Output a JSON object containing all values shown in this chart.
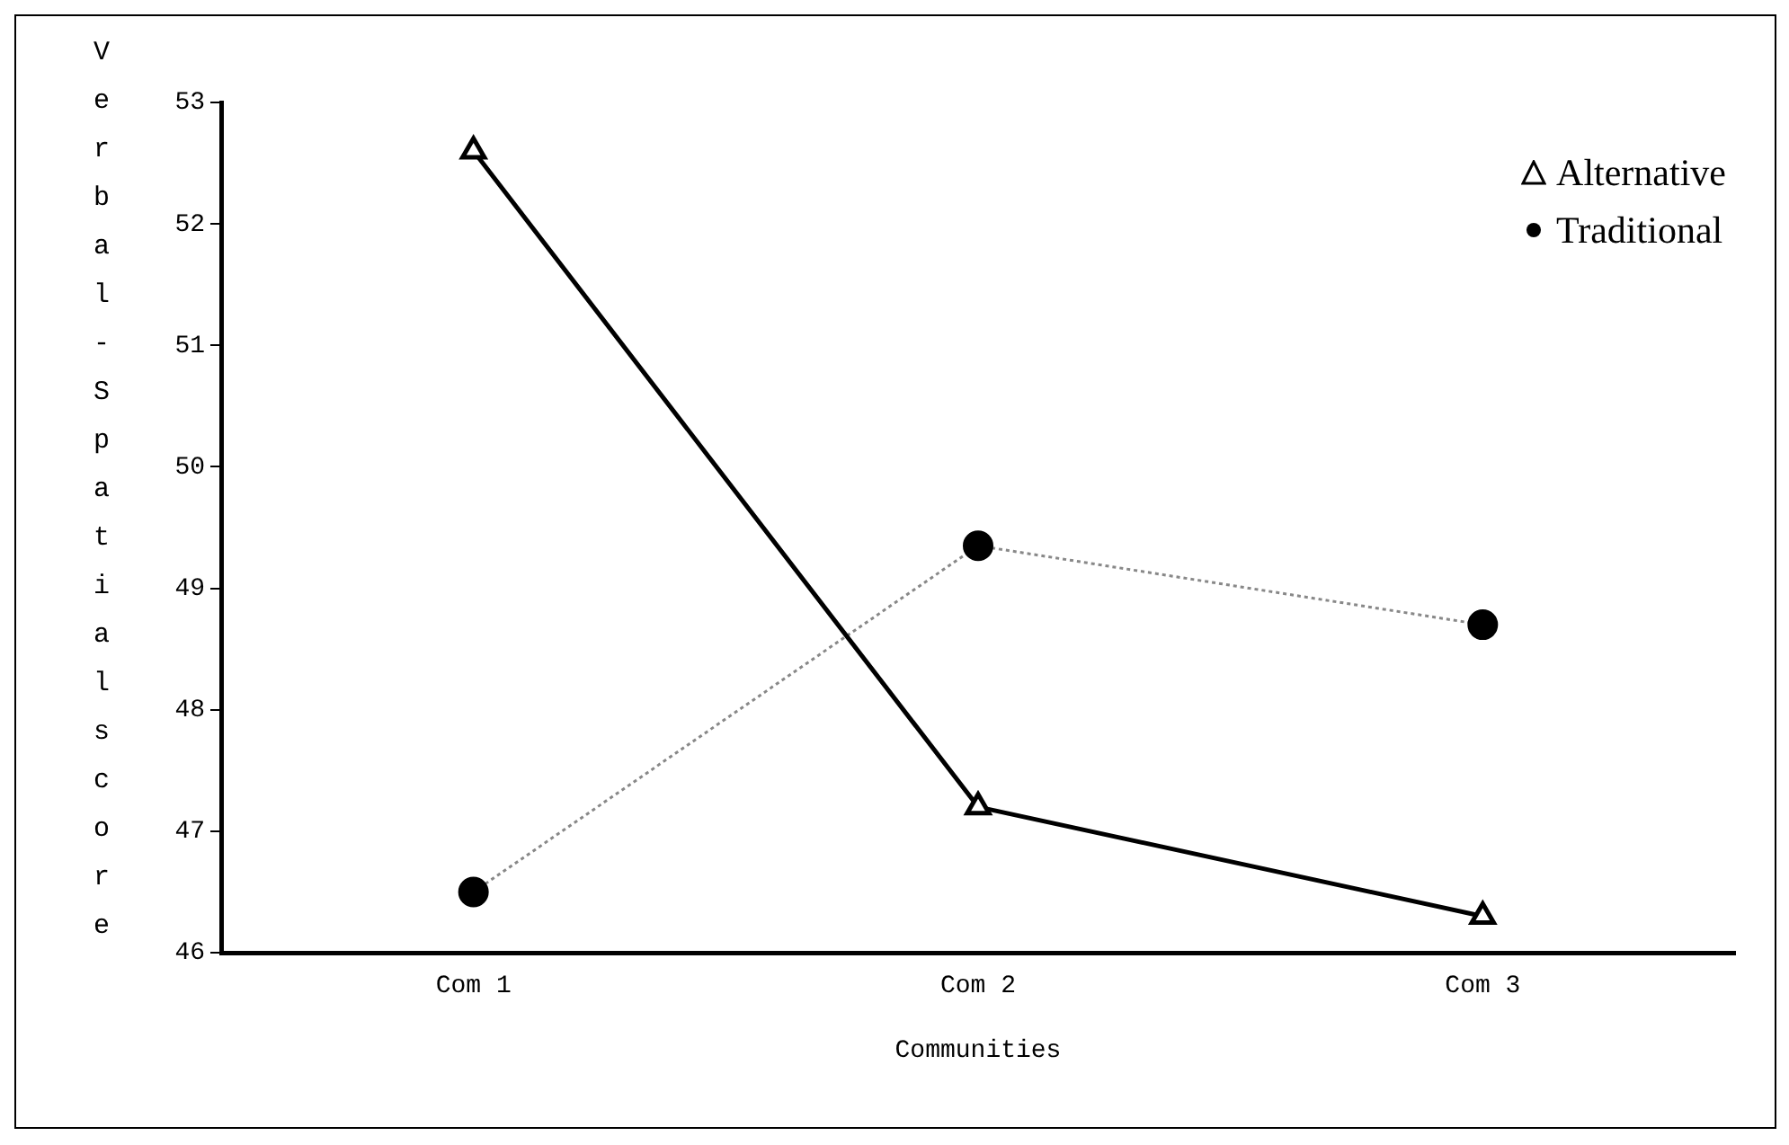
{
  "chart_data": {
    "type": "line",
    "xlabel": "Communities",
    "ylabel": "Verbal-Spatial score",
    "categories": [
      "Com 1",
      "Com 2",
      "Com 3"
    ],
    "series": [
      {
        "name": "Alternative",
        "color": "#000000",
        "values": [
          52.6,
          47.2,
          46.3
        ],
        "marker": "triangle",
        "line_style": "solid"
      },
      {
        "name": "Traditional",
        "color": "#000000",
        "values": [
          46.5,
          49.35,
          48.7
        ],
        "marker": "circle",
        "line_style": "dotted"
      }
    ],
    "ylim": [
      46,
      53
    ],
    "yticks": [
      46,
      47,
      48,
      49,
      50,
      51,
      52,
      53
    ],
    "grid": false,
    "legend": "top right"
  }
}
